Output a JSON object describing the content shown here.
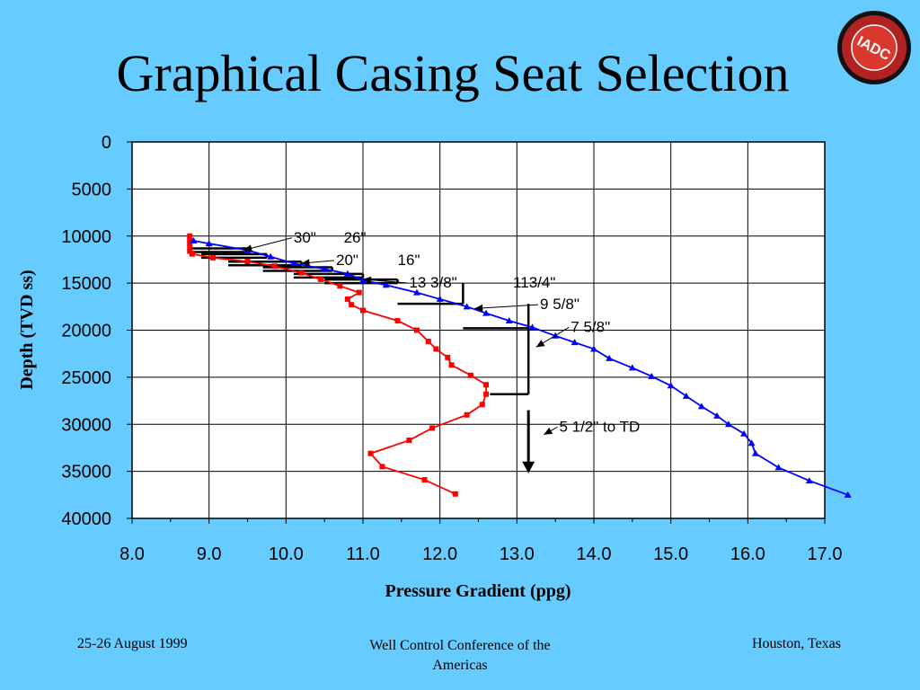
{
  "slide": {
    "title": "Graphical Casing Seat Selection",
    "logo_letters": "IADC",
    "logo_ring_text": "INTERNATIONAL ASSOCIATION OF DRILLING CONTRACTORS"
  },
  "footer": {
    "left": "25-26 August 1999",
    "center_line1": "Well Control Conference of the",
    "center_line2": "Americas",
    "right": "Houston, Texas"
  },
  "colors": {
    "background": "#66ccff",
    "plot_background": "#ffffff",
    "pore_pressure_series": "#ff0000",
    "fracture_gradient_series": "#0000ff",
    "casing_lines": "#000000"
  },
  "chart_data": {
    "type": "line",
    "xlabel": "Pressure Gradient (ppg)",
    "ylabel": "Depth (TVD ss)",
    "xlim": [
      8.0,
      17.0
    ],
    "ylim": [
      0,
      40000
    ],
    "y_inverted": true,
    "grid": true,
    "x_ticks": [
      "8.0",
      "9.0",
      "10.0",
      "11.0",
      "12.0",
      "13.0",
      "14.0",
      "15.0",
      "16.0",
      "17.0"
    ],
    "y_ticks": [
      "0",
      "5000",
      "10000",
      "15000",
      "20000",
      "25000",
      "30000",
      "35000",
      "40000"
    ],
    "series": [
      {
        "marker": "square",
        "color": "#ff0000",
        "points": [
          [
            8.75,
            10000
          ],
          [
            8.75,
            10400
          ],
          [
            8.75,
            10800
          ],
          [
            8.75,
            11200
          ],
          [
            8.75,
            11600
          ],
          [
            8.78,
            11900
          ],
          [
            9.05,
            12300
          ],
          [
            9.5,
            12700
          ],
          [
            9.85,
            13200
          ],
          [
            10.2,
            13900
          ],
          [
            10.45,
            14600
          ],
          [
            10.7,
            15300
          ],
          [
            10.95,
            16000
          ],
          [
            10.8,
            16700
          ],
          [
            10.85,
            17300
          ],
          [
            11.0,
            17900
          ],
          [
            11.45,
            19000
          ],
          [
            11.7,
            20000
          ],
          [
            11.85,
            21200
          ],
          [
            11.95,
            22000
          ],
          [
            12.1,
            22900
          ],
          [
            12.15,
            23700
          ],
          [
            12.4,
            24800
          ],
          [
            12.6,
            25800
          ],
          [
            12.6,
            26800
          ],
          [
            12.55,
            27900
          ],
          [
            12.35,
            29000
          ],
          [
            11.9,
            30400
          ],
          [
            11.6,
            31700
          ],
          [
            11.1,
            33100
          ],
          [
            11.25,
            34500
          ],
          [
            11.8,
            35900
          ],
          [
            12.2,
            37400
          ]
        ]
      },
      {
        "marker": "triangle",
        "color": "#0000ff",
        "points": [
          [
            8.8,
            10500
          ],
          [
            9.0,
            10800
          ],
          [
            9.5,
            11500
          ],
          [
            9.8,
            12200
          ],
          [
            10.1,
            12900
          ],
          [
            10.5,
            13500
          ],
          [
            10.8,
            14000
          ],
          [
            11.0,
            14700
          ],
          [
            11.3,
            15200
          ],
          [
            11.7,
            16000
          ],
          [
            12.0,
            16700
          ],
          [
            12.35,
            17500
          ],
          [
            12.6,
            18200
          ],
          [
            12.9,
            19000
          ],
          [
            13.2,
            19700
          ],
          [
            13.5,
            20600
          ],
          [
            13.75,
            21300
          ],
          [
            14.0,
            22000
          ],
          [
            14.2,
            23000
          ],
          [
            14.5,
            24000
          ],
          [
            14.75,
            24900
          ],
          [
            15.0,
            25900
          ],
          [
            15.2,
            27000
          ],
          [
            15.4,
            28100
          ],
          [
            15.6,
            29100
          ],
          [
            15.75,
            30000
          ],
          [
            15.95,
            31000
          ],
          [
            16.05,
            32000
          ],
          [
            16.1,
            33100
          ],
          [
            16.4,
            34600
          ],
          [
            16.8,
            36000
          ],
          [
            17.3,
            37500
          ]
        ]
      }
    ],
    "casing_steps": [
      {
        "x1": 8.75,
        "x2": 9.5,
        "y_bottom": 11700
      },
      {
        "x1": 8.9,
        "x2": 9.75,
        "y_bottom": 12300
      },
      {
        "x1": 9.25,
        "x2": 10.2,
        "y_bottom": 13100
      },
      {
        "x1": 9.7,
        "x2": 10.6,
        "y_bottom": 13700
      },
      {
        "x1": 10.1,
        "x2": 11.0,
        "y_bottom": 14400
      },
      {
        "x1": 10.5,
        "x2": 11.45,
        "y_bottom": 15000
      },
      {
        "x1": 11.45,
        "x2": 12.3,
        "y_bottom": 17200,
        "y_top": 15000
      },
      {
        "x1": 12.3,
        "x2": 13.15,
        "y_bottom": 19800,
        "y_top": 17200
      },
      {
        "x1": 12.65,
        "x2": 13.15,
        "y_bottom": 26800,
        "y_top": 19800
      }
    ],
    "annotations": [
      {
        "text": "30\"",
        "x": 10.1,
        "y": 10000,
        "arrow_to": [
          9.45,
          11500
        ]
      },
      {
        "text": "26\"",
        "x": 10.75,
        "y": 10000
      },
      {
        "text": "20\"",
        "x": 10.65,
        "y": 12400,
        "arrow_to": [
          10.2,
          12900
        ]
      },
      {
        "text": "16\"",
        "x": 11.45,
        "y": 12400
      },
      {
        "text": "13 3/8\"",
        "x": 11.6,
        "y": 14800,
        "arrow_to": [
          11.0,
          14600
        ]
      },
      {
        "text": "113/4\"",
        "x": 12.95,
        "y": 14800
      },
      {
        "text": "9 5/8\"",
        "x": 13.3,
        "y": 17100,
        "arrow_to": [
          12.45,
          17700
        ]
      },
      {
        "text": "7 5/8\"",
        "x": 13.7,
        "y": 19500,
        "arrow_to": [
          13.25,
          21800
        ]
      },
      {
        "text": "5 1/2\" to TD",
        "x": 13.55,
        "y": 30100,
        "arrow_to": [
          13.35,
          31100
        ]
      }
    ],
    "td_arrow": {
      "x": 13.15,
      "y_from": 28500,
      "y_to": 35200
    }
  }
}
